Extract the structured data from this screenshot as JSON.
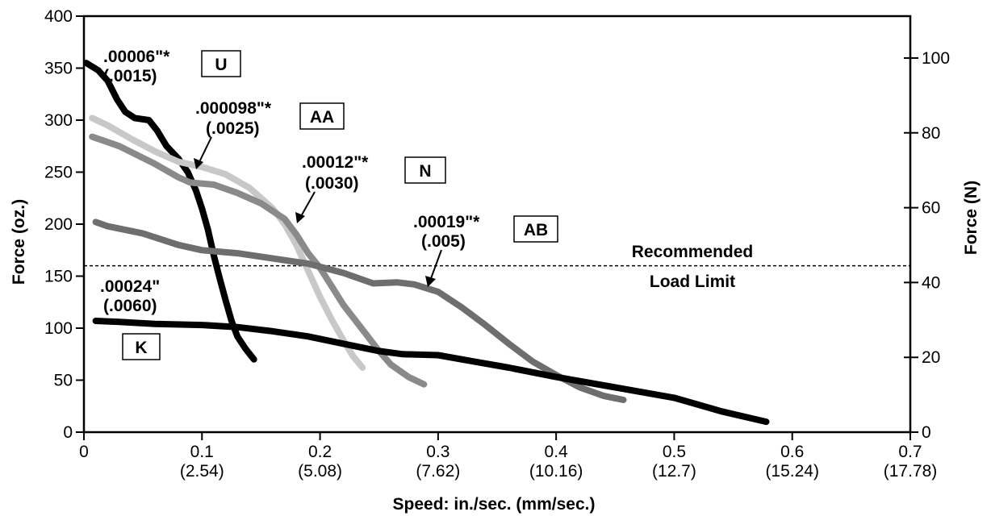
{
  "chart_data": {
    "type": "line",
    "xlabel": "Speed:  in./sec.  (mm/sec.)",
    "ylabel": "Force (oz.)",
    "ylabel_right": "Force (N)",
    "xlim": [
      0,
      0.7
    ],
    "ylim": [
      0,
      400
    ],
    "ylim_right": [
      0,
      111.2
    ],
    "grid": false,
    "x_ticks": [
      {
        "value": 0,
        "label": "0",
        "sublabel": ""
      },
      {
        "value": 0.1,
        "label": "0.1",
        "sublabel": "(2.54)"
      },
      {
        "value": 0.2,
        "label": "0.2",
        "sublabel": "(5.08)"
      },
      {
        "value": 0.3,
        "label": "0.3",
        "sublabel": "(7.62)"
      },
      {
        "value": 0.4,
        "label": "0.4",
        "sublabel": "(10.16)"
      },
      {
        "value": 0.5,
        "label": "0.5",
        "sublabel": "(12.7)"
      },
      {
        "value": 0.6,
        "label": "0.6",
        "sublabel": "(15.24)"
      },
      {
        "value": 0.7,
        "label": "0.7",
        "sublabel": "(17.78)"
      }
    ],
    "y_ticks": [
      {
        "value": 0,
        "label": "0"
      },
      {
        "value": 50,
        "label": "50"
      },
      {
        "value": 100,
        "label": "100"
      },
      {
        "value": 150,
        "label": "150"
      },
      {
        "value": 200,
        "label": "200"
      },
      {
        "value": 250,
        "label": "250"
      },
      {
        "value": 300,
        "label": "300"
      },
      {
        "value": 350,
        "label": "350"
      },
      {
        "value": 400,
        "label": "400"
      }
    ],
    "y_right_ticks": [
      {
        "value": 0,
        "label": "0"
      },
      {
        "value": 20,
        "label": "20"
      },
      {
        "value": 40,
        "label": "40"
      },
      {
        "value": 60,
        "label": "60"
      },
      {
        "value": 80,
        "label": "80"
      },
      {
        "value": 100,
        "label": "100"
      }
    ],
    "reference_line": {
      "y": 160,
      "label_line1": "Recommended",
      "label_line2": "Load Limit"
    },
    "series": [
      {
        "name": "U",
        "color": "#000000",
        "width": 8,
        "annotation": ".00006\"*",
        "annotation2": "(.0015)",
        "points": [
          [
            0.002,
            355
          ],
          [
            0.012,
            348
          ],
          [
            0.02,
            338
          ],
          [
            0.028,
            320
          ],
          [
            0.035,
            308
          ],
          [
            0.043,
            302
          ],
          [
            0.055,
            300
          ],
          [
            0.062,
            290
          ],
          [
            0.07,
            275
          ],
          [
            0.08,
            263
          ],
          [
            0.088,
            250
          ],
          [
            0.095,
            232
          ],
          [
            0.1,
            215
          ],
          [
            0.105,
            195
          ],
          [
            0.11,
            170
          ],
          [
            0.115,
            148
          ],
          [
            0.12,
            127
          ],
          [
            0.125,
            107
          ],
          [
            0.13,
            92
          ],
          [
            0.137,
            80
          ],
          [
            0.144,
            70
          ]
        ]
      },
      {
        "name": "AA",
        "color": "#c8c8c8",
        "width": 8,
        "annotation": ".000098\"*",
        "annotation2": "(.0025)",
        "points": [
          [
            0.007,
            302
          ],
          [
            0.02,
            295
          ],
          [
            0.04,
            282
          ],
          [
            0.06,
            270
          ],
          [
            0.08,
            260
          ],
          [
            0.1,
            255
          ],
          [
            0.12,
            248
          ],
          [
            0.14,
            235
          ],
          [
            0.16,
            215
          ],
          [
            0.17,
            200
          ],
          [
            0.18,
            180
          ],
          [
            0.19,
            155
          ],
          [
            0.2,
            130
          ],
          [
            0.21,
            108
          ],
          [
            0.22,
            88
          ],
          [
            0.228,
            73
          ],
          [
            0.236,
            62
          ]
        ]
      },
      {
        "name": "N",
        "color": "#8a8a8a",
        "width": 8,
        "annotation": ".00012\"*",
        "annotation2": "(.0030)",
        "points": [
          [
            0.007,
            284
          ],
          [
            0.03,
            275
          ],
          [
            0.06,
            258
          ],
          [
            0.08,
            245
          ],
          [
            0.09,
            240
          ],
          [
            0.11,
            238
          ],
          [
            0.13,
            230
          ],
          [
            0.15,
            220
          ],
          [
            0.17,
            205
          ],
          [
            0.18,
            190
          ],
          [
            0.19,
            172
          ],
          [
            0.2,
            158
          ],
          [
            0.21,
            140
          ],
          [
            0.22,
            122
          ],
          [
            0.235,
            100
          ],
          [
            0.25,
            78
          ],
          [
            0.26,
            65
          ],
          [
            0.275,
            53
          ],
          [
            0.288,
            46
          ]
        ]
      },
      {
        "name": "AB",
        "color": "#6e6e6e",
        "width": 8,
        "annotation": ".00019\"*",
        "annotation2": "(.005)",
        "points": [
          [
            0.01,
            202
          ],
          [
            0.02,
            198
          ],
          [
            0.05,
            191
          ],
          [
            0.08,
            180
          ],
          [
            0.1,
            175
          ],
          [
            0.13,
            172
          ],
          [
            0.16,
            167
          ],
          [
            0.19,
            162
          ],
          [
            0.22,
            153
          ],
          [
            0.245,
            143
          ],
          [
            0.265,
            144
          ],
          [
            0.28,
            142
          ],
          [
            0.3,
            135
          ],
          [
            0.32,
            120
          ],
          [
            0.34,
            103
          ],
          [
            0.36,
            85
          ],
          [
            0.38,
            68
          ],
          [
            0.4,
            55
          ],
          [
            0.42,
            43
          ],
          [
            0.44,
            35
          ],
          [
            0.457,
            31
          ]
        ]
      },
      {
        "name": "K",
        "color": "#000000",
        "width": 8,
        "annotation": ".00024\"",
        "annotation2": "(.0060)",
        "points": [
          [
            0.01,
            107
          ],
          [
            0.03,
            106
          ],
          [
            0.06,
            104
          ],
          [
            0.1,
            103
          ],
          [
            0.13,
            101
          ],
          [
            0.16,
            97
          ],
          [
            0.19,
            92
          ],
          [
            0.22,
            85
          ],
          [
            0.25,
            78
          ],
          [
            0.27,
            75
          ],
          [
            0.3,
            74
          ],
          [
            0.33,
            68
          ],
          [
            0.36,
            62
          ],
          [
            0.4,
            53
          ],
          [
            0.45,
            43
          ],
          [
            0.5,
            33
          ],
          [
            0.54,
            20
          ],
          [
            0.578,
            10
          ]
        ]
      }
    ]
  },
  "annotations": {
    "U_code": "U",
    "AA_code": "AA",
    "N_code": "N",
    "AB_code": "AB",
    "K_code": "K"
  }
}
